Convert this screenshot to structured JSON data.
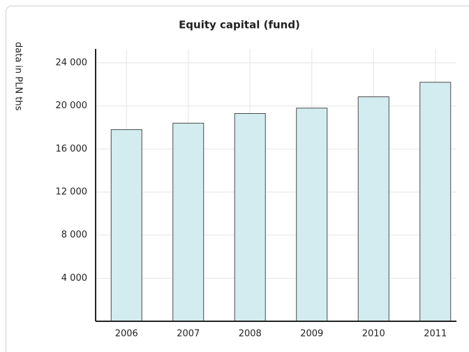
{
  "chart_data": {
    "type": "bar",
    "title": "Equity capital (fund)",
    "y_label": "data in PLN ths",
    "categories": [
      "2006",
      "2007",
      "2008",
      "2009",
      "2010",
      "2011"
    ],
    "values": [
      17800,
      18400,
      19300,
      19800,
      20850,
      22200
    ],
    "color": "#d3ecef",
    "ylim": [
      0,
      25300
    ],
    "yticks": [
      {
        "value": 4000,
        "label": "4 000"
      },
      {
        "value": 8000,
        "label": "8 000"
      },
      {
        "value": 12000,
        "label": "12 000"
      },
      {
        "value": 16000,
        "label": "16 000"
      },
      {
        "value": 20000,
        "label": "20 000"
      },
      {
        "value": 24000,
        "label": "24 000"
      }
    ],
    "grid": true
  }
}
